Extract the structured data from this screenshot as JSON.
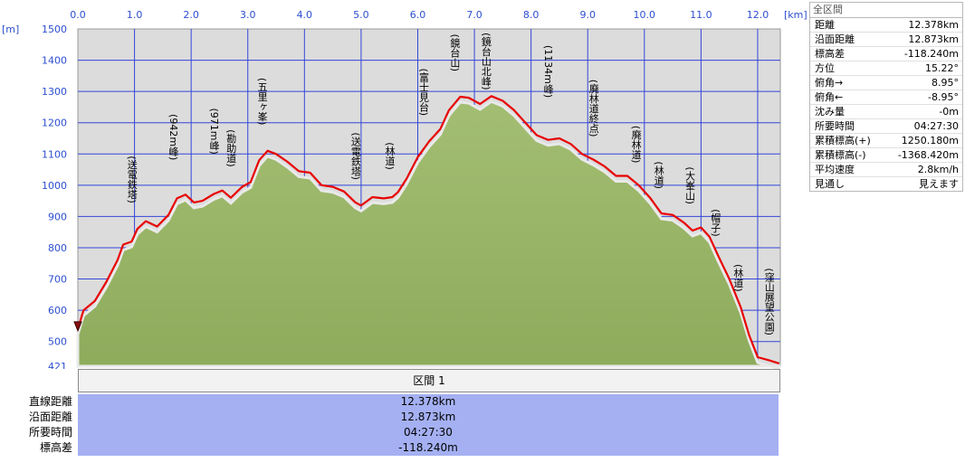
{
  "chart_data": {
    "type": "area",
    "x_unit": "[km]",
    "y_unit": "[m]",
    "xlim": [
      0,
      12.4
    ],
    "ylim": [
      421,
      1500
    ],
    "x_ticks": [
      "0.0",
      "1.0",
      "2.0",
      "3.0",
      "4.0",
      "5.0",
      "6.0",
      "7.0",
      "8.0",
      "9.0",
      "10.0",
      "11.0",
      "12.0"
    ],
    "y_ticks": [
      "1500",
      "1400",
      "1300",
      "1200",
      "1100",
      "1000",
      "900",
      "800",
      "700",
      "600",
      "500",
      "421"
    ],
    "grid": true,
    "series": [
      {
        "color": "#e80000",
        "points": [
          [
            0,
            540
          ],
          [
            0.1,
            600
          ],
          [
            0.3,
            630
          ],
          [
            0.5,
            690
          ],
          [
            0.7,
            760
          ],
          [
            0.8,
            810
          ],
          [
            0.95,
            820
          ],
          [
            1.05,
            860
          ],
          [
            1.2,
            885
          ],
          [
            1.4,
            868
          ],
          [
            1.6,
            905
          ],
          [
            1.75,
            958
          ],
          [
            1.9,
            970
          ],
          [
            2.05,
            945
          ],
          [
            2.2,
            950
          ],
          [
            2.4,
            972
          ],
          [
            2.55,
            983
          ],
          [
            2.7,
            960
          ],
          [
            2.9,
            995
          ],
          [
            3.05,
            1010
          ],
          [
            3.2,
            1080
          ],
          [
            3.35,
            1110
          ],
          [
            3.5,
            1100
          ],
          [
            3.7,
            1075
          ],
          [
            3.9,
            1045
          ],
          [
            4.1,
            1040
          ],
          [
            4.3,
            1000
          ],
          [
            4.5,
            995
          ],
          [
            4.7,
            980
          ],
          [
            4.9,
            945
          ],
          [
            5.0,
            935
          ],
          [
            5.2,
            962
          ],
          [
            5.4,
            958
          ],
          [
            5.55,
            962
          ],
          [
            5.65,
            978
          ],
          [
            5.8,
            1020
          ],
          [
            6.0,
            1090
          ],
          [
            6.2,
            1140
          ],
          [
            6.4,
            1180
          ],
          [
            6.55,
            1240
          ],
          [
            6.75,
            1283
          ],
          [
            6.9,
            1280
          ],
          [
            7.1,
            1260
          ],
          [
            7.3,
            1285
          ],
          [
            7.5,
            1270
          ],
          [
            7.7,
            1240
          ],
          [
            7.9,
            1200
          ],
          [
            8.1,
            1160
          ],
          [
            8.3,
            1145
          ],
          [
            8.5,
            1150
          ],
          [
            8.7,
            1132
          ],
          [
            8.9,
            1100
          ],
          [
            9.1,
            1082
          ],
          [
            9.3,
            1060
          ],
          [
            9.5,
            1030
          ],
          [
            9.7,
            1030
          ],
          [
            9.9,
            1000
          ],
          [
            10.1,
            960
          ],
          [
            10.3,
            910
          ],
          [
            10.5,
            905
          ],
          [
            10.7,
            880
          ],
          [
            10.85,
            855
          ],
          [
            11.0,
            865
          ],
          [
            11.15,
            835
          ],
          [
            11.3,
            775
          ],
          [
            11.5,
            700
          ],
          [
            11.7,
            610
          ],
          [
            11.85,
            520
          ],
          [
            12.0,
            450
          ],
          [
            12.2,
            440
          ],
          [
            12.38,
            430
          ]
        ]
      }
    ],
    "annotations": [
      {
        "label": "(送電鉄塔)",
        "x": 1.05
      },
      {
        "label": "(942m峰)",
        "x": 1.78
      },
      {
        "label": "(971m峰)",
        "x": 2.5
      },
      {
        "label": "(勘助道)",
        "x": 2.8
      },
      {
        "label": "(五里ヶ峯)",
        "x": 3.35
      },
      {
        "label": "(送電鉄塔)",
        "x": 5.0
      },
      {
        "label": "(林道)",
        "x": 5.6
      },
      {
        "label": "(富士見台)",
        "x": 6.2
      },
      {
        "label": "(鏡台山)",
        "x": 6.75
      },
      {
        "label": "(鏡台山北峰)",
        "x": 7.3
      },
      {
        "label": "(1134m峰)",
        "x": 8.4
      },
      {
        "label": "(廃林道終点)",
        "x": 9.2
      },
      {
        "label": "(廃林道)",
        "x": 9.95
      },
      {
        "label": "(林道)",
        "x": 10.35
      },
      {
        "label": "(大峯山)",
        "x": 10.9
      },
      {
        "label": "(帽子)",
        "x": 11.35
      },
      {
        "label": "(林道)",
        "x": 11.75
      },
      {
        "label": "(窪山展望公園)",
        "x": 12.3
      }
    ]
  },
  "info_panel": {
    "title": "全区間",
    "rows": [
      {
        "label": "距離",
        "value": "12.378km"
      },
      {
        "label": "沿面距離",
        "value": "12.873km"
      },
      {
        "label": "標高差",
        "value": "-118.240m"
      },
      {
        "label": "方位",
        "value": "15.22°"
      },
      {
        "label": "俯角→",
        "value": "8.95°"
      },
      {
        "label": "俯角←",
        "value": "-8.95°"
      },
      {
        "label": "沈み量",
        "value": "-0m"
      },
      {
        "label": "所要時間",
        "value": "04:27:30"
      },
      {
        "label": "累積標高(+)",
        "value": "1250.180m"
      },
      {
        "label": "累積標高(-)",
        "value": "-1368.420m"
      },
      {
        "label": "平均速度",
        "value": "2.8km/h"
      },
      {
        "label": "見通し",
        "value": "見えます"
      }
    ]
  },
  "section_table": {
    "header": "区間 1",
    "rows": [
      {
        "label": "直線距離",
        "value": "12.378km"
      },
      {
        "label": "沿面距離",
        "value": "12.873km"
      },
      {
        "label": "所要時間",
        "value": "04:27:30"
      },
      {
        "label": "標高差",
        "value": "-118.240m"
      }
    ]
  },
  "colors": {
    "plot_bg": "#dcdcdc",
    "fill": "#8eab5c",
    "fill_top": "#a3be72",
    "grid": "#3346d8",
    "profile": "#e80000",
    "tick_text": "#2d4fd0"
  }
}
